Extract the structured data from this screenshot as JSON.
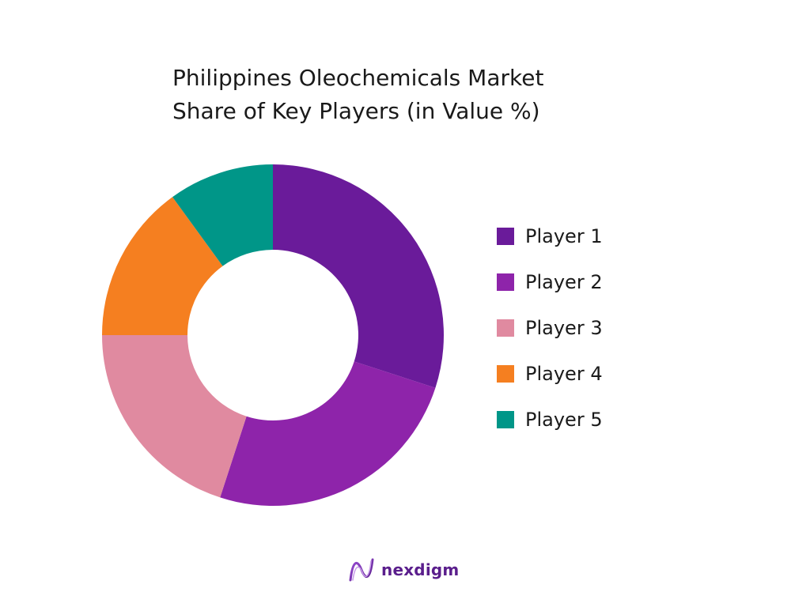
{
  "chart_data": {
    "type": "pie",
    "variant": "donut",
    "title": "Philippines Oleochemicals Market Share of Key Players (in Value %)",
    "categories": [
      "Player 1",
      "Player 2",
      "Player 3",
      "Player 4",
      "Player 5"
    ],
    "values": [
      30,
      25,
      20,
      15,
      10
    ],
    "colors": [
      "#6a1b9a",
      "#8e24aa",
      "#e08aa0",
      "#f57f20",
      "#009688"
    ],
    "legend_position": "right",
    "start": "top, clockwise"
  },
  "title_lines": [
    "Philippines Oleochemicals Market",
    "Share of Key Players (in Value %)"
  ],
  "logo": {
    "text": "nexdigm",
    "icon": "nexdigm-logo-icon"
  }
}
